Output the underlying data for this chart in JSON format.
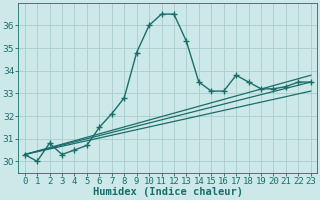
{
  "xlabel": "Humidex (Indice chaleur)",
  "bg_color": "#cce8e8",
  "grid_color": "#aacccc",
  "line_color": "#1a6e6a",
  "xlim": [
    -0.5,
    23.5
  ],
  "ylim": [
    29.5,
    37.0
  ],
  "yticks": [
    30,
    31,
    32,
    33,
    34,
    35,
    36
  ],
  "xticks": [
    0,
    1,
    2,
    3,
    4,
    5,
    6,
    7,
    8,
    9,
    10,
    11,
    12,
    13,
    14,
    15,
    16,
    17,
    18,
    19,
    20,
    21,
    22,
    23
  ],
  "series_main": {
    "x": [
      0,
      1,
      2,
      3,
      4,
      5,
      6,
      7,
      8,
      9,
      10,
      11,
      12,
      13,
      14,
      15,
      16,
      17,
      18,
      19,
      20,
      21,
      22,
      23
    ],
    "y": [
      30.3,
      30.0,
      30.8,
      30.3,
      30.5,
      30.7,
      31.5,
      32.1,
      32.8,
      34.8,
      36.0,
      36.5,
      36.5,
      35.3,
      33.5,
      33.1,
      33.1,
      33.8,
      33.5,
      33.2,
      33.2,
      33.3,
      33.5,
      33.5
    ]
  },
  "trend_lines": [
    {
      "x": [
        0,
        23
      ],
      "y": [
        30.3,
        33.5
      ]
    },
    {
      "x": [
        0,
        23
      ],
      "y": [
        30.3,
        33.8
      ]
    },
    {
      "x": [
        0,
        23
      ],
      "y": [
        30.3,
        33.1
      ]
    }
  ],
  "tick_fontsize": 6.5,
  "label_fontsize": 7.5
}
